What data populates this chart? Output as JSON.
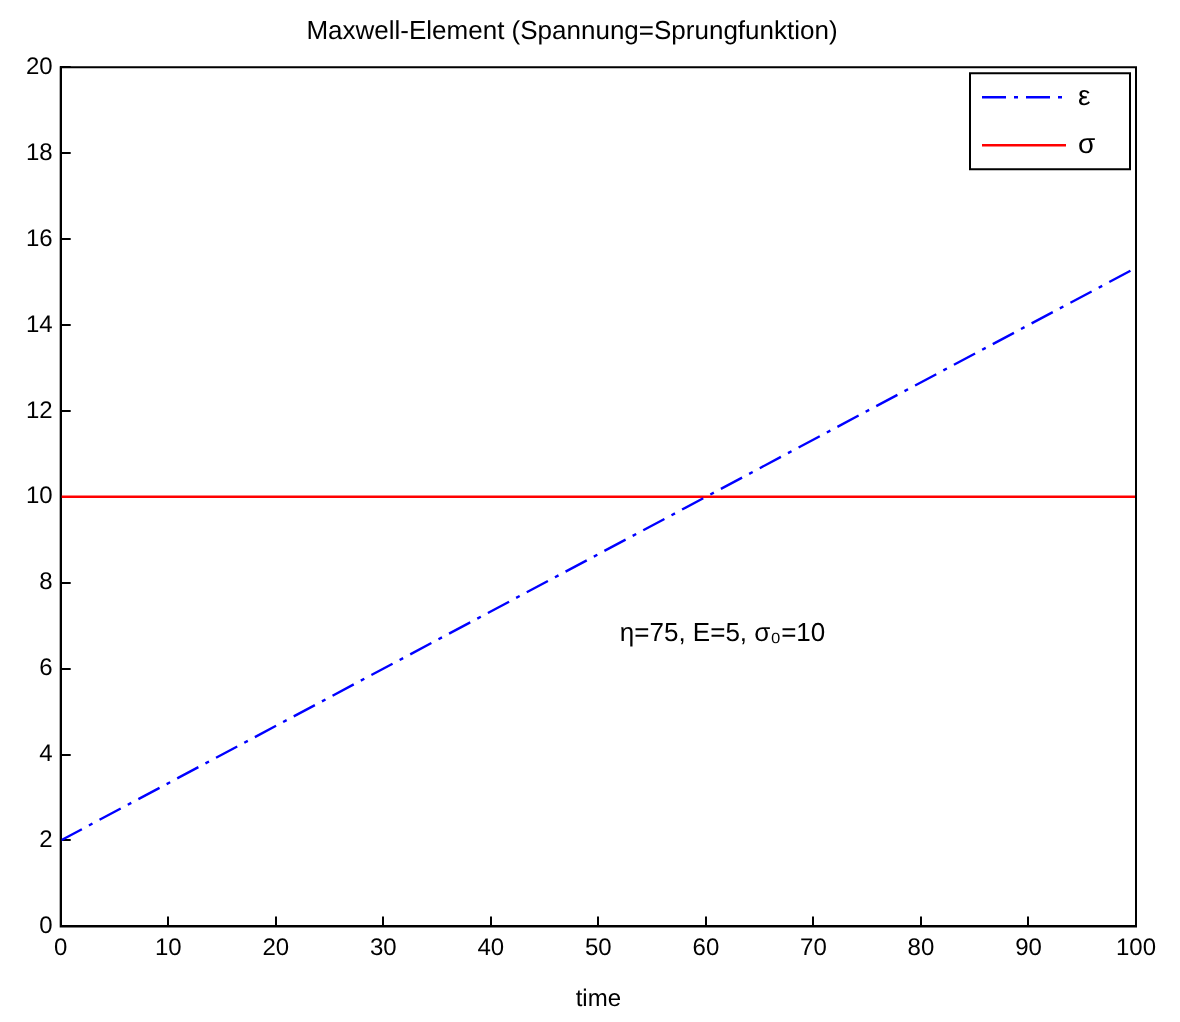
{
  "chart_data": {
    "type": "line",
    "title": "Maxwell-Element (Spannung=Sprungfunktion)",
    "xlabel": "time",
    "x": [
      0,
      100
    ],
    "series": [
      {
        "name": "ε",
        "color": "#0000ff",
        "values": [
          2,
          15.33
        ],
        "line_style": "dashed"
      },
      {
        "name": "σ",
        "color": "#ff0000",
        "values": [
          10,
          10
        ],
        "line_style": "solid"
      }
    ],
    "xlim": [
      0,
      100
    ],
    "xticks": [
      0,
      10,
      20,
      30,
      40,
      50,
      60,
      70,
      80,
      90,
      100
    ],
    "ylim": [
      0,
      20
    ],
    "yticks": [
      0,
      2,
      4,
      6,
      8,
      10,
      12,
      14,
      16,
      18,
      20
    ],
    "grid": false,
    "legend": "top right",
    "marker": "none",
    "annotations": [
      "η=75, E=5, σ₀=10"
    ]
  }
}
